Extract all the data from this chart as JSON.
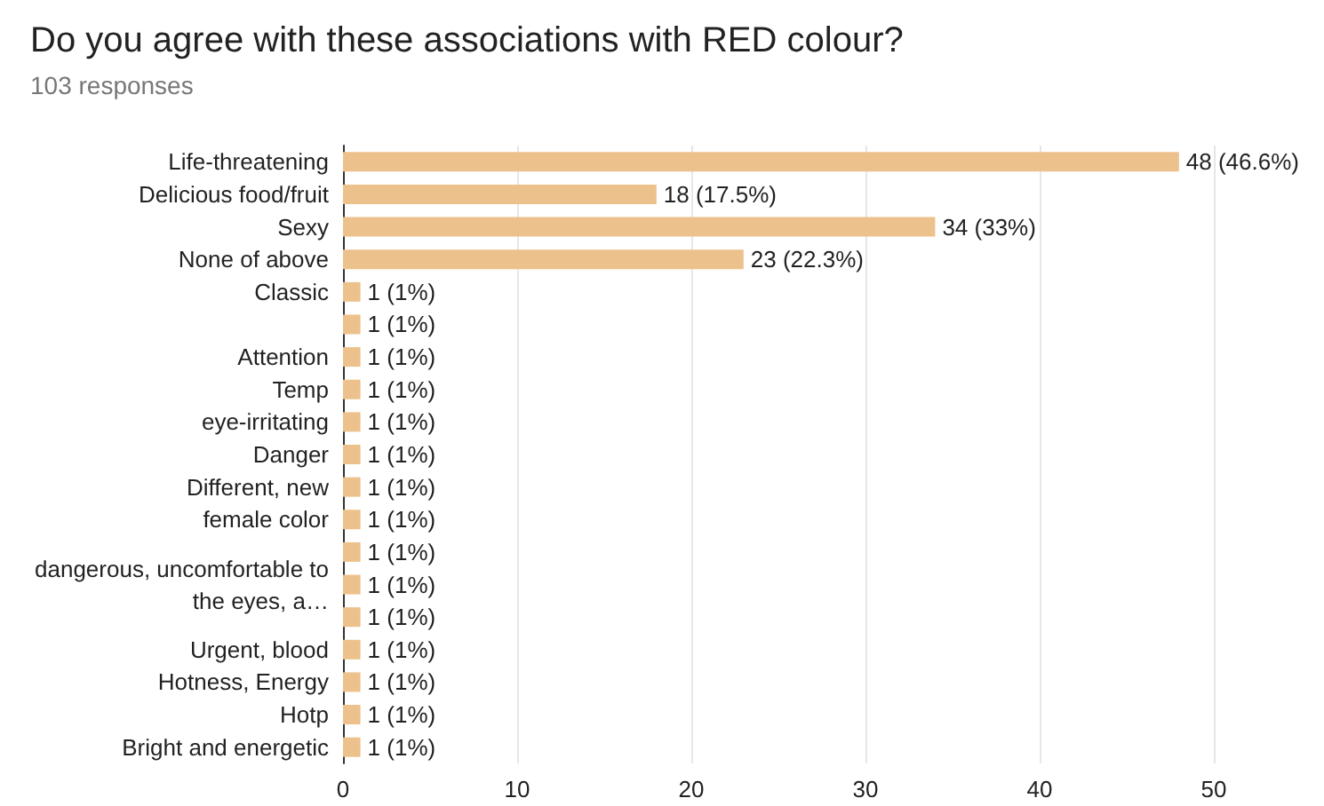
{
  "chart_data": {
    "type": "bar",
    "orientation": "horizontal",
    "title": "Do you agree with these associations with RED colour?",
    "subtitle": "103 responses",
    "categories": [
      "Life-threatening",
      "Delicious food/fruit",
      "Sexy",
      "None of above",
      "Classic",
      null,
      "Attention",
      "Temp",
      "eye-irritating",
      "Danger",
      "Different, new",
      "female color",
      null,
      "dangerous, uncomfortable to\nthe eyes, a…",
      null,
      "Urgent, blood",
      "Hotness, Energy",
      "Hotp",
      "Bright and energetic"
    ],
    "values": [
      48,
      18,
      34,
      23,
      1,
      1,
      1,
      1,
      1,
      1,
      1,
      1,
      1,
      1,
      1,
      1,
      1,
      1,
      1
    ],
    "value_labels": [
      "48 (46.6%)",
      "18 (17.5%)",
      "34 (33%)",
      "23 (22.3%)",
      "1 (1%)",
      "1 (1%)",
      "1 (1%)",
      "1 (1%)",
      "1 (1%)",
      "1 (1%)",
      "1 (1%)",
      "1 (1%)",
      "1 (1%)",
      "1 (1%)",
      "1 (1%)",
      "1 (1%)",
      "1 (1%)",
      "1 (1%)",
      "1 (1%)"
    ],
    "color": "#edc18b",
    "xlim": [
      0,
      50
    ],
    "xticks": [
      0,
      10,
      20,
      30,
      40,
      50
    ],
    "grid": "x"
  }
}
